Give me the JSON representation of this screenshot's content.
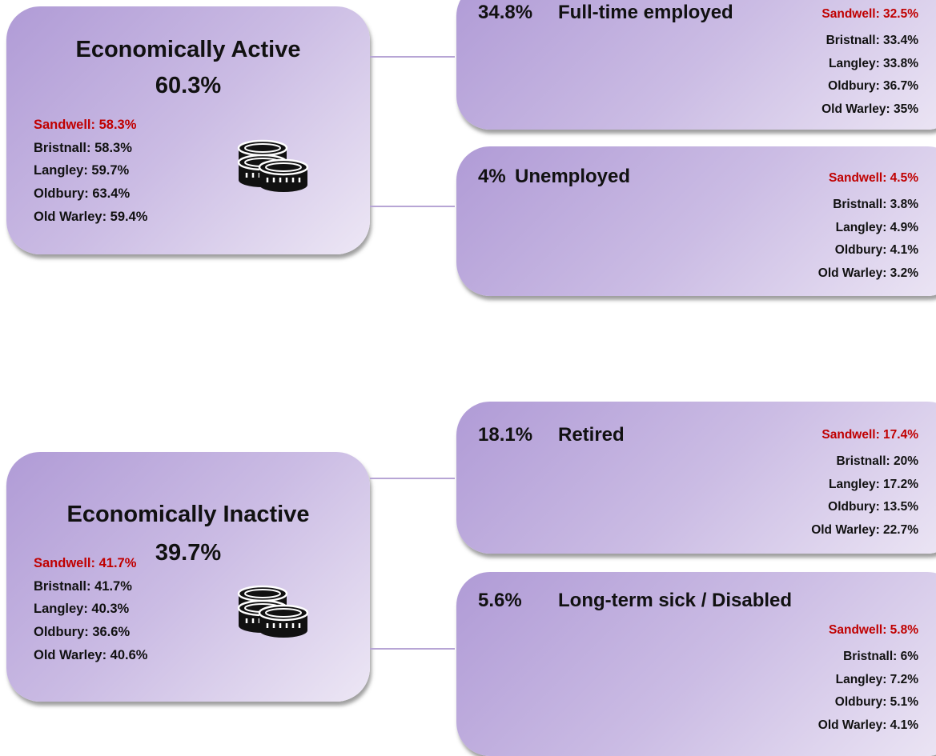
{
  "sections": [
    {
      "title": "Economically Active",
      "value": "60.3%",
      "comparisons": [
        "Sandwell: 58.3%",
        "Bristnall: 58.3%",
        "Langley: 59.7%",
        "Oldbury: 63.4%",
        "Old Warley: 59.4%"
      ],
      "breakdown": [
        {
          "value": "34.8%",
          "label": "Full-time employed",
          "comparisons": [
            "Sandwell: 32.5%",
            "Bristnall: 33.4%",
            "Langley: 33.8%",
            "Oldbury: 36.7%",
            "Old Warley: 35%"
          ]
        },
        {
          "value": "4%",
          "label": "Unemployed",
          "comparisons": [
            "Sandwell: 4.5%",
            "Bristnall: 3.8%",
            "Langley: 4.9%",
            "Oldbury: 4.1%",
            "Old Warley: 3.2%"
          ]
        }
      ]
    },
    {
      "title": "Economically Inactive",
      "value": "39.7%",
      "comparisons": [
        "Sandwell: 41.7%",
        "Bristnall: 41.7%",
        "Langley: 40.3%",
        "Oldbury: 36.6%",
        "Old Warley: 40.6%"
      ],
      "breakdown": [
        {
          "value": "18.1%",
          "label": "Retired",
          "comparisons": [
            "Sandwell: 17.4%",
            "Bristnall: 20%",
            "Langley: 17.2%",
            "Oldbury: 13.5%",
            "Old Warley: 22.7%"
          ]
        },
        {
          "value": "5.6%",
          "label": "Long-term sick / Disabled",
          "comparisons": [
            "Sandwell: 5.8%",
            "Bristnall: 6%",
            "Langley: 7.2%",
            "Oldbury: 5.1%",
            "Old Warley: 4.1%"
          ]
        }
      ]
    }
  ]
}
